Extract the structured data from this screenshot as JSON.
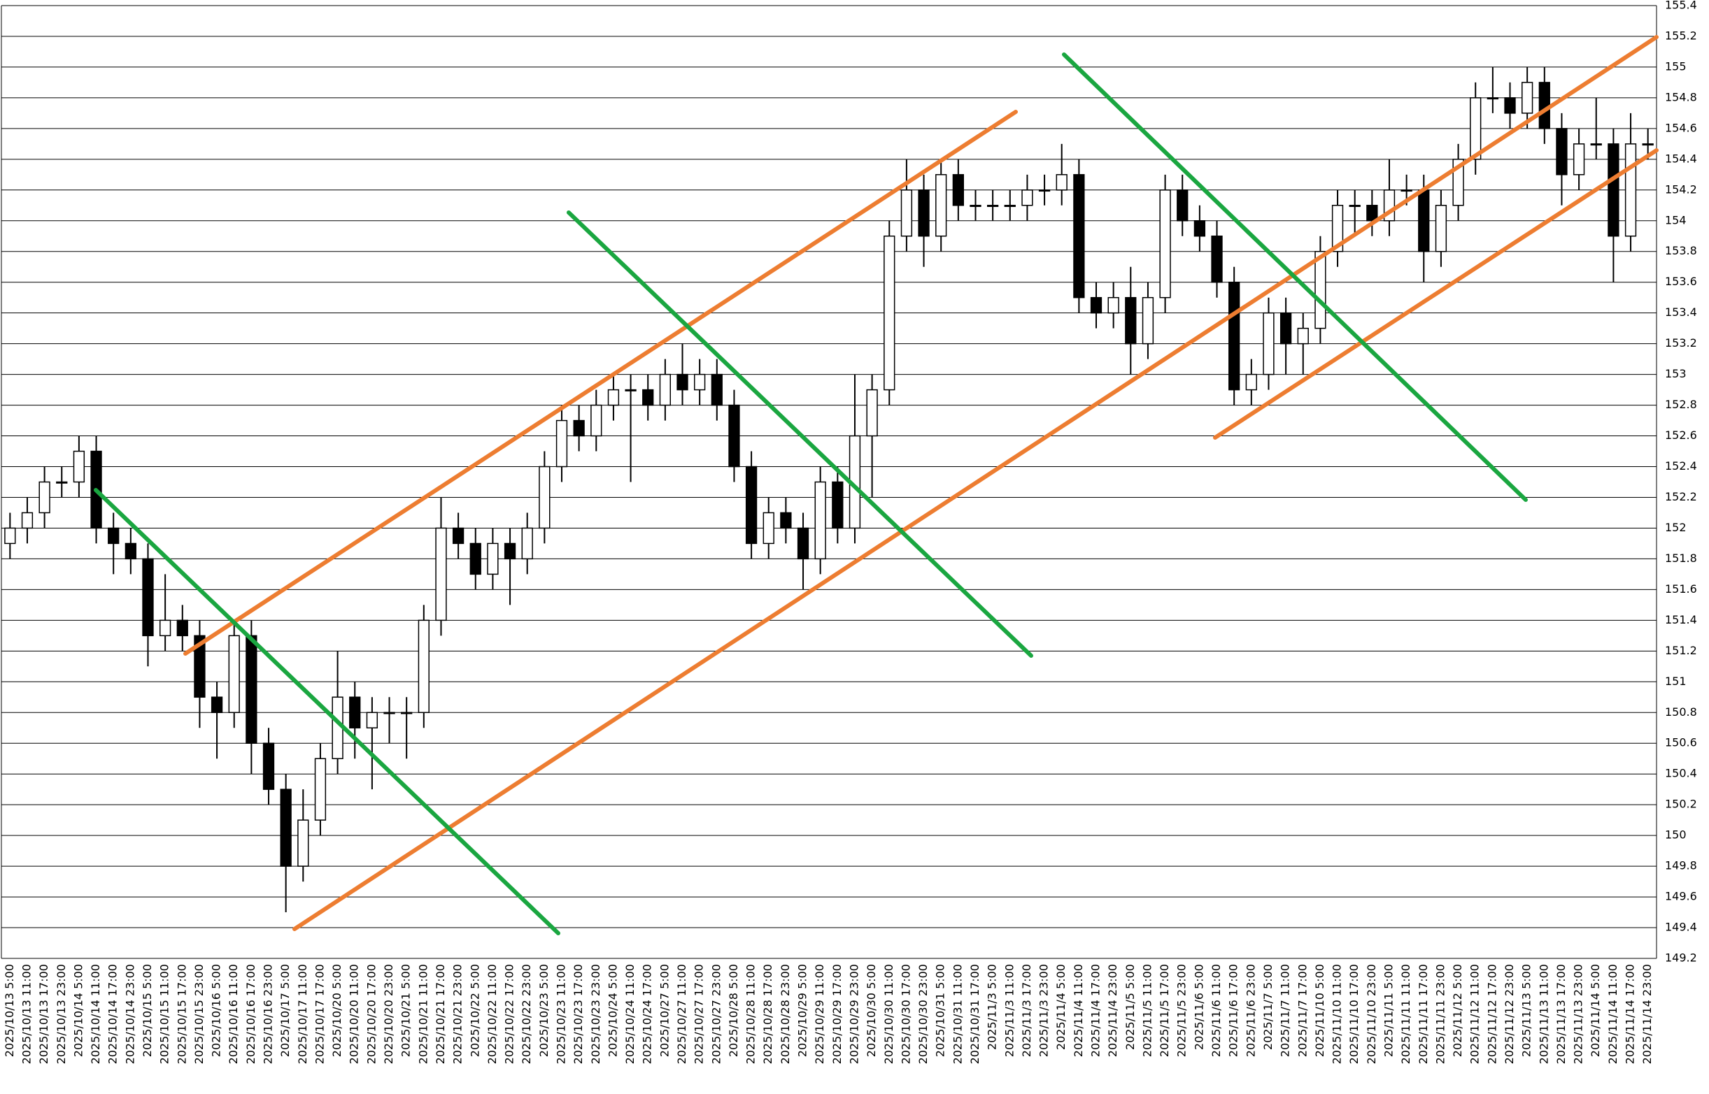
{
  "chart_data": {
    "type": "candlestick",
    "categories": [
      "2025/10/13 5:00",
      "2025/10/13 11:00",
      "2025/10/13 17:00",
      "2025/10/13 23:00",
      "2025/10/14 5:00",
      "2025/10/14 11:00",
      "2025/10/14 17:00",
      "2025/10/14 23:00",
      "2025/10/15 5:00",
      "2025/10/15 11:00",
      "2025/10/15 17:00",
      "2025/10/15 23:00",
      "2025/10/16 5:00",
      "2025/10/16 11:00",
      "2025/10/16 17:00",
      "2025/10/16 23:00",
      "2025/10/17 5:00",
      "2025/10/17 11:00",
      "2025/10/17 17:00",
      "2025/10/20 5:00",
      "2025/10/20 11:00",
      "2025/10/20 17:00",
      "2025/10/20 23:00",
      "2025/10/21 5:00",
      "2025/10/21 11:00",
      "2025/10/21 17:00",
      "2025/10/21 23:00",
      "2025/10/22 5:00",
      "2025/10/22 11:00",
      "2025/10/22 17:00",
      "2025/10/22 23:00",
      "2025/10/23 5:00",
      "2025/10/23 11:00",
      "2025/10/23 17:00",
      "2025/10/23 23:00",
      "2025/10/24 5:00",
      "2025/10/24 11:00",
      "2025/10/24 17:00",
      "2025/10/27 5:00",
      "2025/10/27 11:00",
      "2025/10/27 17:00",
      "2025/10/27 23:00",
      "2025/10/28 5:00",
      "2025/10/28 11:00",
      "2025/10/28 17:00",
      "2025/10/28 23:00",
      "2025/10/29 5:00",
      "2025/10/29 11:00",
      "2025/10/29 17:00",
      "2025/10/29 23:00",
      "2025/10/30 5:00",
      "2025/10/30 11:00",
      "2025/10/30 17:00",
      "2025/10/30 23:00",
      "2025/10/31 5:00",
      "2025/10/31 11:00",
      "2025/10/31 17:00",
      "2025/11/3 5:00",
      "2025/11/3 11:00",
      "2025/11/3 17:00",
      "2025/11/3 23:00",
      "2025/11/4 5:00",
      "2025/11/4 11:00",
      "2025/11/4 17:00",
      "2025/11/4 23:00",
      "2025/11/5 5:00",
      "2025/11/5 11:00",
      "2025/11/5 17:00",
      "2025/11/5 23:00",
      "2025/11/6 5:00",
      "2025/11/6 11:00",
      "2025/11/6 17:00",
      "2025/11/6 23:00",
      "2025/11/7 5:00",
      "2025/11/7 11:00",
      "2025/11/7 17:00",
      "2025/11/10 5:00",
      "2025/11/10 11:00",
      "2025/11/10 17:00",
      "2025/11/10 23:00",
      "2025/11/11 5:00",
      "2025/11/11 11:00",
      "2025/11/11 17:00",
      "2025/11/11 23:00",
      "2025/11/12 5:00",
      "2025/11/12 11:00",
      "2025/11/12 17:00",
      "2025/11/12 23:00",
      "2025/11/13 5:00",
      "2025/11/13 11:00",
      "2025/11/13 17:00",
      "2025/11/13 23:00",
      "2025/11/14 5:00",
      "2025/11/14 11:00",
      "2025/11/14 17:00",
      "2025/11/14 23:00"
    ],
    "ohlc": [
      [
        151.9,
        152.1,
        151.8,
        152.0
      ],
      [
        152.0,
        152.2,
        151.9,
        152.1
      ],
      [
        152.1,
        152.4,
        152.0,
        152.3
      ],
      [
        152.3,
        152.4,
        152.2,
        152.3
      ],
      [
        152.3,
        152.6,
        152.2,
        152.5
      ],
      [
        152.5,
        152.6,
        151.9,
        152.0
      ],
      [
        152.0,
        152.1,
        151.7,
        151.9
      ],
      [
        151.9,
        152.0,
        151.7,
        151.8
      ],
      [
        151.8,
        151.9,
        151.1,
        151.3
      ],
      [
        151.3,
        151.7,
        151.2,
        151.4
      ],
      [
        151.4,
        151.5,
        151.2,
        151.3
      ],
      [
        151.3,
        151.4,
        150.7,
        150.9
      ],
      [
        150.9,
        151.0,
        150.5,
        150.8
      ],
      [
        150.8,
        151.4,
        150.7,
        151.3
      ],
      [
        151.3,
        151.4,
        150.4,
        150.6
      ],
      [
        150.6,
        150.7,
        150.2,
        150.3
      ],
      [
        150.3,
        150.4,
        149.5,
        149.8
      ],
      [
        149.8,
        150.3,
        149.7,
        150.1
      ],
      [
        150.1,
        150.6,
        150.0,
        150.5
      ],
      [
        150.5,
        151.2,
        150.4,
        150.9
      ],
      [
        150.9,
        151.0,
        150.5,
        150.7
      ],
      [
        150.7,
        150.9,
        150.3,
        150.8
      ],
      [
        150.8,
        150.9,
        150.6,
        150.8
      ],
      [
        150.8,
        150.9,
        150.5,
        150.8
      ],
      [
        150.8,
        151.5,
        150.7,
        151.4
      ],
      [
        151.4,
        152.2,
        151.3,
        152.0
      ],
      [
        152.0,
        152.1,
        151.8,
        151.9
      ],
      [
        151.9,
        152.0,
        151.6,
        151.7
      ],
      [
        151.7,
        152.0,
        151.6,
        151.9
      ],
      [
        151.9,
        152.0,
        151.5,
        151.8
      ],
      [
        151.8,
        152.1,
        151.7,
        152.0
      ],
      [
        152.0,
        152.5,
        151.9,
        152.4
      ],
      [
        152.4,
        152.8,
        152.3,
        152.7
      ],
      [
        152.7,
        152.8,
        152.5,
        152.6
      ],
      [
        152.6,
        152.9,
        152.5,
        152.8
      ],
      [
        152.8,
        153.0,
        152.7,
        152.9
      ],
      [
        152.9,
        153.0,
        152.3,
        152.9
      ],
      [
        152.9,
        153.0,
        152.7,
        152.8
      ],
      [
        152.8,
        153.1,
        152.7,
        153.0
      ],
      [
        153.0,
        153.2,
        152.8,
        152.9
      ],
      [
        152.9,
        153.1,
        152.8,
        153.0
      ],
      [
        153.0,
        153.1,
        152.7,
        152.8
      ],
      [
        152.8,
        152.9,
        152.3,
        152.4
      ],
      [
        152.4,
        152.5,
        151.8,
        151.9
      ],
      [
        151.9,
        152.2,
        151.8,
        152.1
      ],
      [
        152.1,
        152.2,
        151.9,
        152.0
      ],
      [
        152.0,
        152.1,
        151.6,
        151.8
      ],
      [
        151.8,
        152.4,
        151.7,
        152.3
      ],
      [
        152.3,
        152.4,
        151.9,
        152.0
      ],
      [
        152.0,
        153.0,
        151.9,
        152.6
      ],
      [
        152.6,
        153.0,
        152.2,
        152.9
      ],
      [
        152.9,
        154.0,
        152.8,
        153.9
      ],
      [
        153.9,
        154.4,
        153.8,
        154.2
      ],
      [
        154.2,
        154.3,
        153.7,
        153.9
      ],
      [
        153.9,
        154.4,
        153.8,
        154.3
      ],
      [
        154.3,
        154.4,
        154.0,
        154.1
      ],
      [
        154.1,
        154.2,
        154.0,
        154.1
      ],
      [
        154.1,
        154.2,
        154.0,
        154.1
      ],
      [
        154.1,
        154.2,
        154.0,
        154.1
      ],
      [
        154.1,
        154.3,
        154.0,
        154.2
      ],
      [
        154.2,
        154.3,
        154.1,
        154.2
      ],
      [
        154.2,
        154.5,
        154.1,
        154.3
      ],
      [
        154.3,
        154.4,
        153.4,
        153.5
      ],
      [
        153.5,
        153.6,
        153.3,
        153.4
      ],
      [
        153.4,
        153.6,
        153.3,
        153.5
      ],
      [
        153.5,
        153.7,
        153.0,
        153.2
      ],
      [
        153.2,
        153.6,
        153.1,
        153.5
      ],
      [
        153.5,
        154.3,
        153.4,
        154.2
      ],
      [
        154.2,
        154.3,
        153.9,
        154.0
      ],
      [
        154.0,
        154.1,
        153.8,
        153.9
      ],
      [
        153.9,
        154.0,
        153.5,
        153.6
      ],
      [
        153.6,
        153.7,
        152.8,
        152.9
      ],
      [
        152.9,
        153.1,
        152.8,
        153.0
      ],
      [
        153.0,
        153.5,
        152.9,
        153.4
      ],
      [
        153.4,
        153.5,
        153.0,
        153.2
      ],
      [
        153.2,
        153.4,
        153.0,
        153.3
      ],
      [
        153.3,
        153.9,
        153.2,
        153.8
      ],
      [
        153.8,
        154.2,
        153.7,
        154.1
      ],
      [
        154.1,
        154.2,
        153.9,
        154.1
      ],
      [
        154.1,
        154.2,
        153.9,
        154.0
      ],
      [
        154.0,
        154.4,
        153.9,
        154.2
      ],
      [
        154.2,
        154.3,
        154.1,
        154.2
      ],
      [
        154.2,
        154.3,
        153.6,
        153.8
      ],
      [
        153.8,
        154.2,
        153.7,
        154.1
      ],
      [
        154.1,
        154.5,
        154.0,
        154.4
      ],
      [
        154.4,
        154.9,
        154.3,
        154.8
      ],
      [
        154.8,
        155.0,
        154.7,
        154.8
      ],
      [
        154.8,
        154.9,
        154.6,
        154.7
      ],
      [
        154.7,
        155.0,
        154.6,
        154.9
      ],
      [
        154.9,
        155.0,
        154.5,
        154.6
      ],
      [
        154.6,
        154.7,
        154.1,
        154.3
      ],
      [
        154.3,
        154.6,
        154.2,
        154.5
      ],
      [
        154.5,
        154.8,
        154.4,
        154.5
      ],
      [
        154.5,
        154.6,
        153.6,
        153.9
      ],
      [
        153.9,
        154.7,
        153.8,
        154.5
      ],
      [
        154.5,
        154.6,
        154.4,
        154.5
      ]
    ],
    "ylim": [
      149.2,
      155.4
    ],
    "yticks": [
      149.2,
      149.4,
      149.6,
      149.8,
      150,
      150.2,
      150.4,
      150.6,
      150.8,
      151,
      151.2,
      151.4,
      151.6,
      151.8,
      152,
      152.2,
      152.4,
      152.6,
      152.8,
      153,
      153.2,
      153.4,
      153.6,
      153.8,
      154,
      154.2,
      154.4,
      154.6,
      154.8,
      155,
      155.2,
      155.4
    ],
    "grid": true,
    "up_color": "#ffffff",
    "down_color": "#000000",
    "wick_color": "#000000"
  }
}
